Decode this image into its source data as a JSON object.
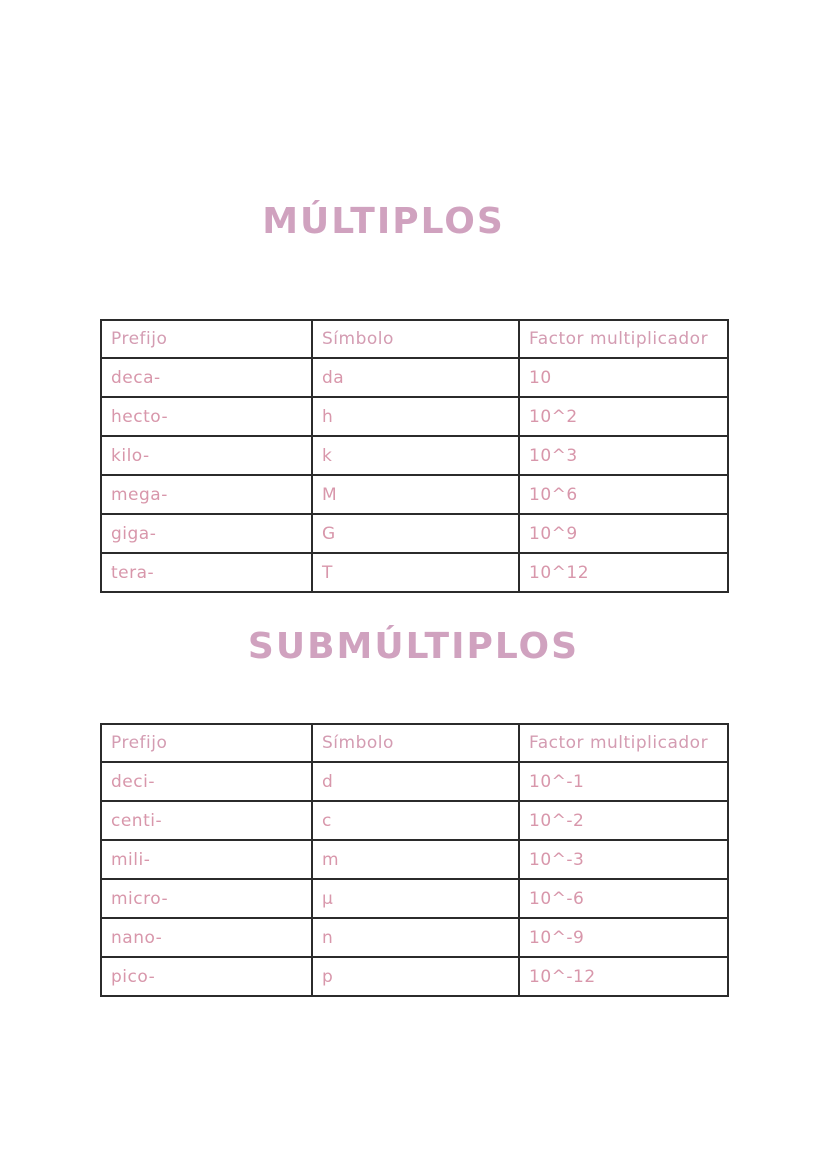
{
  "page": {
    "background": "#ffffff",
    "heading_color": "#d0a2bf",
    "text_color": "#d897ab",
    "border_color": "#2b2b2b"
  },
  "headings": {
    "multiplos": "MÚLTIPLOS",
    "submultiplos": "SUBMÚLTIPLOS"
  },
  "tables": {
    "columns": [
      "Prefijo",
      "Símbolo",
      "Factor multiplicador"
    ],
    "multiplos_rows": [
      [
        "deca-",
        "da",
        "10"
      ],
      [
        "hecto-",
        "h",
        "10^2"
      ],
      [
        "kilo-",
        "k",
        "10^3"
      ],
      [
        "mega-",
        "M",
        "10^6"
      ],
      [
        "giga-",
        "G",
        "10^9"
      ],
      [
        "tera-",
        "T",
        "10^12"
      ]
    ],
    "submultiplos_rows": [
      [
        "deci-",
        "d",
        "10^-1"
      ],
      [
        "centi-",
        "c",
        "10^-2"
      ],
      [
        "mili-",
        "m",
        "10^-3"
      ],
      [
        "micro-",
        "µ",
        "10^-6"
      ],
      [
        "nano-",
        "n",
        "10^-9"
      ],
      [
        "pico-",
        "p",
        "10^-12"
      ]
    ]
  }
}
